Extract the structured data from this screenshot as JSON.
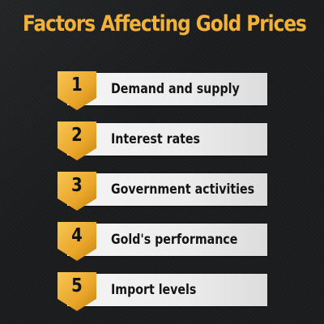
{
  "title": "Factors Affecting Gold Prices",
  "colors": {
    "title": "#f2b23a",
    "badge_light": "#f7c652",
    "badge_dark": "#c78411",
    "badge_fold": "#9a5f08",
    "background": "#1b1c1e",
    "bar": "#f0f0f0"
  },
  "factors": [
    {
      "number": "1",
      "label": "Demand and supply"
    },
    {
      "number": "2",
      "label": "Interest rates"
    },
    {
      "number": "3",
      "label": "Government activities"
    },
    {
      "number": "4",
      "label": "Gold's performance"
    },
    {
      "number": "5",
      "label": "Import levels"
    }
  ]
}
